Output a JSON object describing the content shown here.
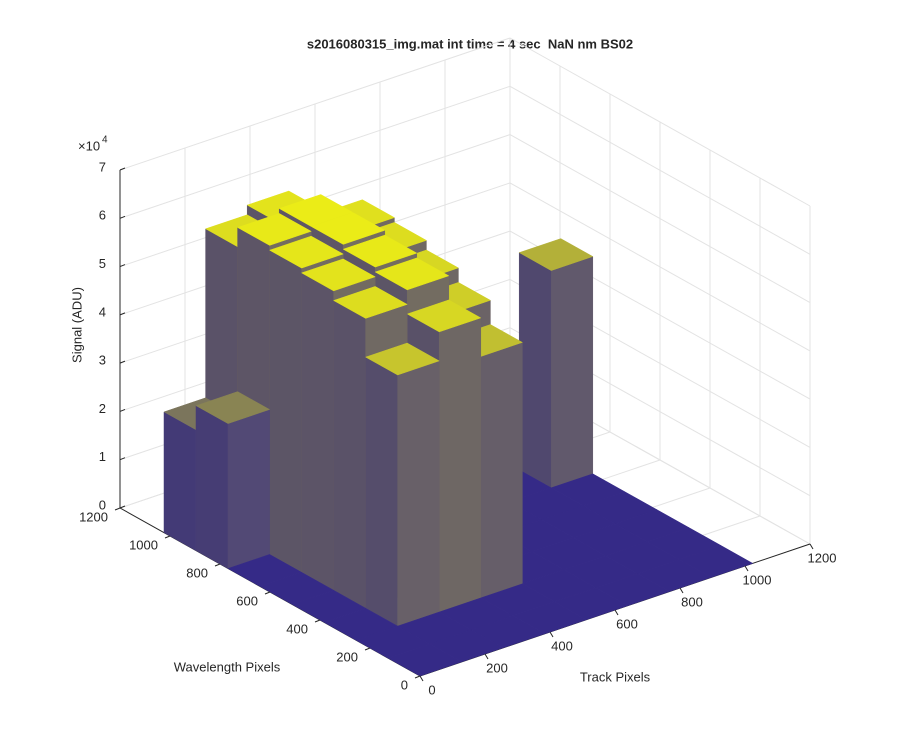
{
  "chart_data": {
    "type": "surface3d",
    "title": "s2016080315_img.mat int time = 4 sec  NaN nm BS02",
    "xlabel": "Track Pixels",
    "ylabel": "Wavelength Pixels",
    "zlabel": "Signal (ADU)",
    "zexponent": {
      "base": "×10",
      "power": "4"
    },
    "xlim": [
      0,
      1200
    ],
    "ylim": [
      0,
      1200
    ],
    "zlim": [
      0,
      70000
    ],
    "xticks": [
      0,
      200,
      400,
      600,
      800,
      1000,
      1200
    ],
    "yticks": [
      0,
      200,
      400,
      600,
      800,
      1000,
      1200
    ],
    "zticks": [
      0,
      {
        "value": 10000,
        "label": "1"
      },
      {
        "value": 20000,
        "label": "2"
      },
      {
        "value": 30000,
        "label": "3"
      },
      {
        "value": 40000,
        "label": "4"
      },
      {
        "value": 50000,
        "label": "5"
      },
      {
        "value": 60000,
        "label": "6"
      },
      {
        "value": 70000,
        "label": "7"
      }
    ],
    "grid": true,
    "colors": [
      "#352a87",
      "#f9fb0e"
    ],
    "x_edges": [
      0,
      128,
      256,
      384,
      512,
      640,
      768,
      896,
      1024
    ],
    "y_edges": [
      0,
      128,
      256,
      384,
      512,
      640,
      768,
      896,
      1024
    ],
    "z": [
      [
        0,
        0,
        0,
        0,
        0,
        0,
        0,
        0
      ],
      [
        0,
        0,
        0,
        0,
        0,
        0,
        0,
        0
      ],
      [
        0,
        52000,
        58000,
        50000,
        0,
        0,
        0,
        0
      ],
      [
        0,
        60000,
        63000,
        55000,
        0,
        0,
        0,
        0
      ],
      [
        0,
        62000,
        64000,
        58000,
        0,
        0,
        0,
        0
      ],
      [
        0,
        63000,
        65000,
        60000,
        0,
        0,
        0,
        45000
      ],
      [
        30000,
        64000,
        65000,
        61000,
        0,
        0,
        0,
        0
      ],
      [
        25000,
        60000,
        62000,
        56000,
        0,
        0,
        0,
        0
      ]
    ]
  }
}
